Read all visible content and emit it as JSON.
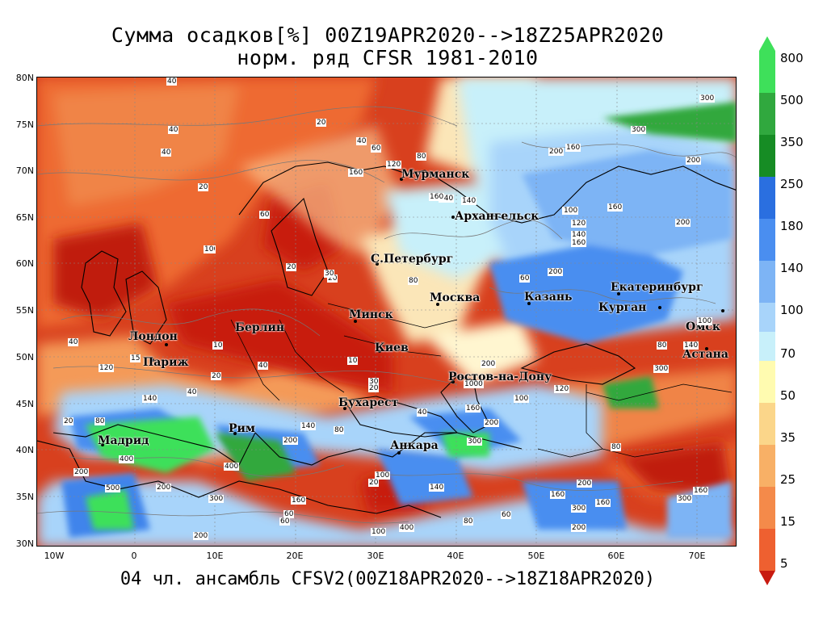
{
  "title_line1": "Сумма осадков[%] 00Z19APR2020-->18Z25APR2020",
  "title_line2": "норм. ряд CFSR 1981-2010",
  "footer": "04 чл. ансамбль CFSV2(00Z18APR2020-->18Z18APR2020)",
  "lat_labels": [
    "80N",
    "75N",
    "70N",
    "65N",
    "60N",
    "55N",
    "50N",
    "45N",
    "40N",
    "35N",
    "30N"
  ],
  "lon_labels": [
    "10W",
    "0",
    "10E",
    "20E",
    "30E",
    "40E",
    "50E",
    "60E",
    "70E"
  ],
  "cities": [
    "Мурманск",
    "Архангельск",
    "С.Петербург",
    "Москва",
    "Казань",
    "Екатеринбург",
    "Курган",
    "Минск",
    "Омск",
    "Лондон",
    "Берлин",
    "Париж",
    "Киев",
    "Астана",
    "Ростов-на-Дону",
    "Бухарест",
    "Мадрид",
    "Рим",
    "Анкара"
  ],
  "contour_labels": [
    "40",
    "20",
    "40",
    "40",
    "20",
    "40",
    "60",
    "80",
    "120",
    "160",
    "10",
    "60",
    "20",
    "80",
    "100",
    "140",
    "160",
    "200",
    "160",
    "300",
    "300",
    "200",
    "200",
    "160",
    "140",
    "120",
    "100",
    "140",
    "160",
    "200",
    "20",
    "10",
    "30",
    "40",
    "80",
    "60",
    "80",
    "200",
    "10",
    "20",
    "40",
    "10",
    "30",
    "15",
    "120",
    "40",
    "20",
    "140",
    "200",
    "140",
    "20",
    "80",
    "160",
    "400",
    "500",
    "200",
    "200",
    "300",
    "400",
    "200",
    "100",
    "160",
    "60",
    "100",
    "140",
    "300",
    "200",
    "160",
    "300",
    "80",
    "60",
    "100",
    "300",
    "100",
    "200",
    "400",
    "300",
    "160",
    "1000",
    "120",
    "40",
    "20",
    "60",
    "80",
    "160",
    "200",
    "140"
  ],
  "legend": {
    "labels": [
      "800",
      "500",
      "350",
      "250",
      "180",
      "140",
      "100",
      "70",
      "50",
      "35",
      "25",
      "15",
      "5"
    ],
    "colors": [
      "#3ee05a",
      "#30a83e",
      "#168c24",
      "#2a6fe0",
      "#4a8ef0",
      "#7db4f5",
      "#a8d4fa",
      "#c8f0fa",
      "#fffbb0",
      "#fbd68a",
      "#f8b066",
      "#f48a4a",
      "#ee6030",
      "#e0361c",
      "#c81a10"
    ]
  },
  "colors": {
    "land_red": "#d8401e",
    "dark_red": "#c01a0e",
    "orange": "#f08446",
    "light_orange": "#f9c18a",
    "blue": "#3f84eb",
    "light_blue": "#9fd0f7",
    "green": "#30a83e"
  }
}
